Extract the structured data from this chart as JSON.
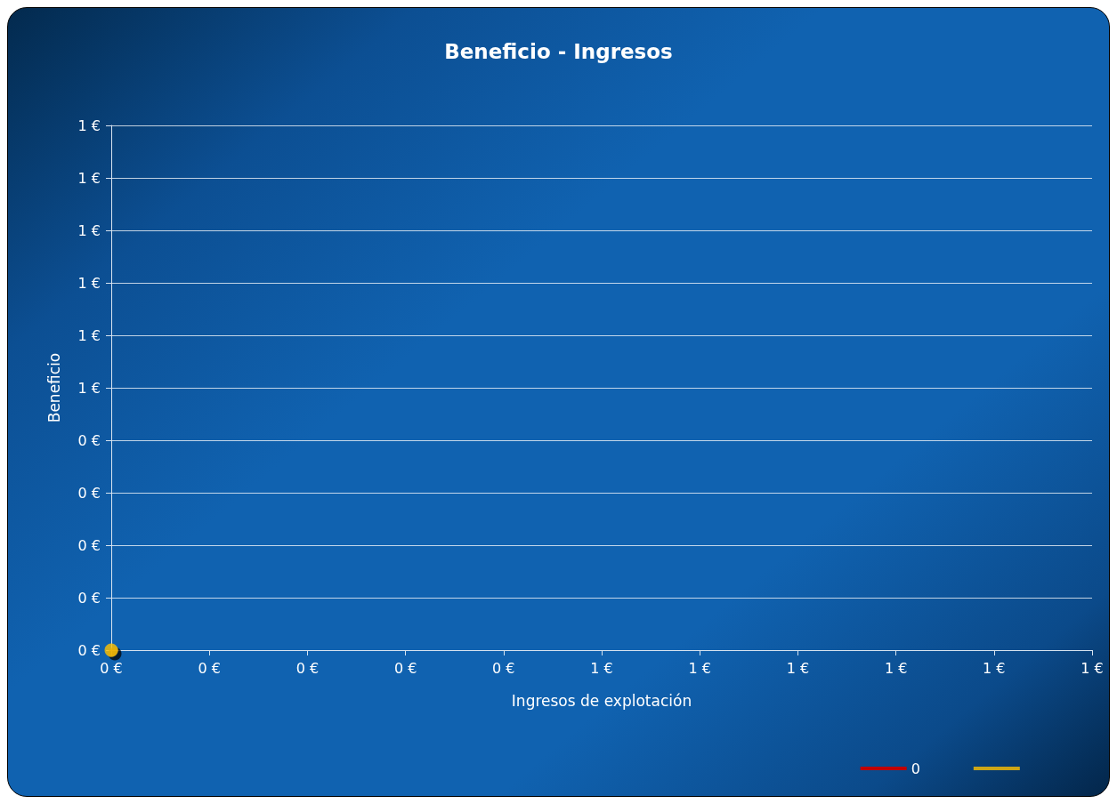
{
  "chart_data": {
    "type": "scatter",
    "title": "Beneficio - Ingresos",
    "xlabel": "Ingresos de explotación",
    "ylabel": "Beneficio",
    "xlim": [
      0,
      1
    ],
    "ylim": [
      0,
      1
    ],
    "xticks": [
      {
        "value": 0,
        "label": "0 €"
      },
      {
        "value": 0.1,
        "label": "0 €"
      },
      {
        "value": 0.2,
        "label": "0 €"
      },
      {
        "value": 0.3,
        "label": "0 €"
      },
      {
        "value": 0.4,
        "label": "0 €"
      },
      {
        "value": 0.5,
        "label": "1 €"
      },
      {
        "value": 0.6,
        "label": "1 €"
      },
      {
        "value": 0.7,
        "label": "1 €"
      },
      {
        "value": 0.8,
        "label": "1 €"
      },
      {
        "value": 0.9,
        "label": "1 €"
      },
      {
        "value": 1,
        "label": "1 €"
      }
    ],
    "yticks": [
      {
        "value": 0,
        "label": "0 €"
      },
      {
        "value": 0.1,
        "label": "0 €"
      },
      {
        "value": 0.2,
        "label": "0 €"
      },
      {
        "value": 0.3,
        "label": "0 €"
      },
      {
        "value": 0.4,
        "label": "0 €"
      },
      {
        "value": 0.5,
        "label": "1 €"
      },
      {
        "value": 0.6,
        "label": "1 €"
      },
      {
        "value": 0.7,
        "label": "1 €"
      },
      {
        "value": 0.8,
        "label": "1 €"
      },
      {
        "value": 0.9,
        "label": "1 €"
      },
      {
        "value": 1,
        "label": "1 €"
      }
    ],
    "grid": "y",
    "legend": "bottom right",
    "marker": "circle",
    "series": [
      {
        "name": "0",
        "type": "line",
        "color": "#c00000"
      },
      {
        "color": "#ffc000",
        "x": [
          0
        ],
        "values": [
          0
        ]
      }
    ]
  }
}
